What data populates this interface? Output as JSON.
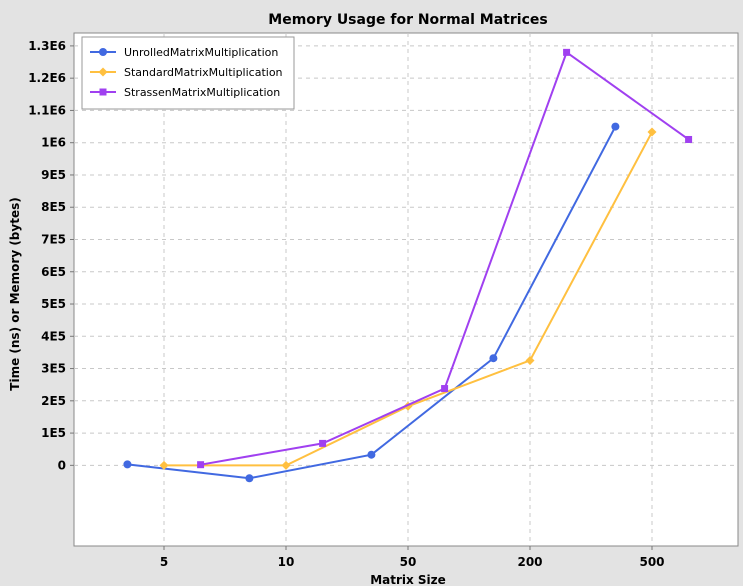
{
  "chart_data": {
    "type": "line",
    "title": "Memory Usage for Normal Matrices",
    "xlabel": "Matrix Size",
    "ylabel": "Time (ns) or Memory (bytes)",
    "categories": [
      "5",
      "10",
      "50",
      "200",
      "500"
    ],
    "ylim": [
      -250000,
      1340000
    ],
    "yticks": [
      0,
      100000,
      200000,
      300000,
      400000,
      500000,
      600000,
      700000,
      800000,
      900000,
      1000000,
      1100000,
      1200000,
      1300000
    ],
    "ytick_labels": [
      "0",
      "1E5",
      "2E5",
      "3E5",
      "4E5",
      "5E5",
      "6E5",
      "7E5",
      "8E5",
      "9E5",
      "1E6",
      "1.1E6",
      "1.2E6",
      "1.3E6"
    ],
    "grid": true,
    "legend_position": "top-left",
    "series": [
      {
        "name": "UnrolledMatrixMultiplication",
        "color": "#4169e1",
        "marker": "circle",
        "values": [
          3000,
          -40000,
          33000,
          332000,
          1050000
        ]
      },
      {
        "name": "StandardMatrixMultiplication",
        "color": "#ffc040",
        "marker": "diamond",
        "values": [
          0,
          0,
          183000,
          325000,
          1033000
        ]
      },
      {
        "name": "StrassenMatrixMultiplication",
        "color": "#a040f0",
        "marker": "square",
        "values": [
          2000,
          68000,
          238000,
          1280000,
          1010000
        ]
      }
    ]
  }
}
